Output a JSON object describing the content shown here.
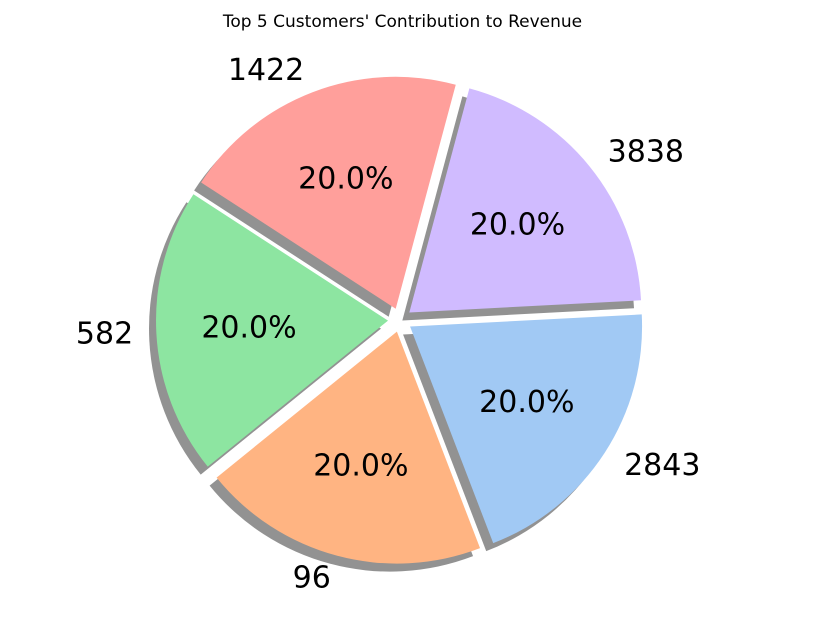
{
  "chart_data": {
    "type": "pie",
    "title": "Top 5 Customers' Contribution to Revenue",
    "labels": [
      "1422",
      "582",
      "96",
      "2843",
      "3838"
    ],
    "values": [
      20.0,
      20.0,
      20.0,
      20.0,
      20.0
    ],
    "percent_labels": [
      "20.0%",
      "20.0%",
      "20.0%",
      "20.0%",
      "20.0%"
    ],
    "colors": [
      "#ff9f9b",
      "#8de5a1",
      "#ffb482",
      "#a1c9f4",
      "#d0bbff"
    ],
    "start_angle_deg": 75,
    "direction": "counterclockwise",
    "exploded": true,
    "shadow": true,
    "legend": "none"
  }
}
